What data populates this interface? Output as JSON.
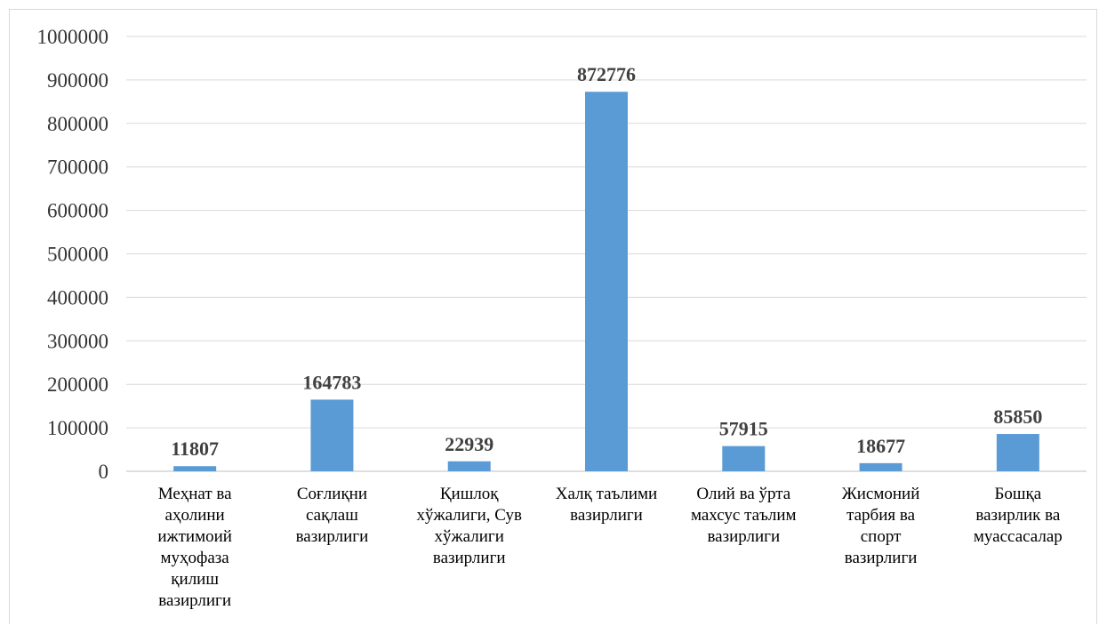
{
  "chart_data": {
    "type": "bar",
    "title": "",
    "xlabel": "",
    "ylabel": "",
    "ylim": [
      0,
      1000000
    ],
    "yticks": [
      0,
      100000,
      200000,
      300000,
      400000,
      500000,
      600000,
      700000,
      800000,
      900000,
      1000000
    ],
    "grid": true,
    "legend": "none",
    "bar_color": "#5b9bd5",
    "categories": [
      [
        "Меҳнат ва",
        "аҳолини",
        "ижтимоий",
        "муҳофаза",
        "қилиш",
        "вазирлиги"
      ],
      [
        "Соғлиқни",
        "сақлаш",
        "вазирлиги"
      ],
      [
        "Қишлоқ",
        "хўжалиги, Сув",
        "хўжалиги",
        "вазирлиги"
      ],
      [
        "Халқ таълими",
        "вазирлиги"
      ],
      [
        "Олий ва ўрта",
        "махсус таълим",
        "вазирлиги"
      ],
      [
        "Жисмоний",
        "тарбия ва",
        "спорт",
        "вазирлиги"
      ],
      [
        "Бошқа",
        "вазирлик ва",
        "муассасалар"
      ]
    ],
    "values": [
      11807,
      164783,
      22939,
      872776,
      57915,
      18677,
      85850
    ],
    "data_labels": [
      "11807",
      "164783",
      "22939",
      "872776",
      "57915",
      "18677",
      "85850"
    ]
  }
}
